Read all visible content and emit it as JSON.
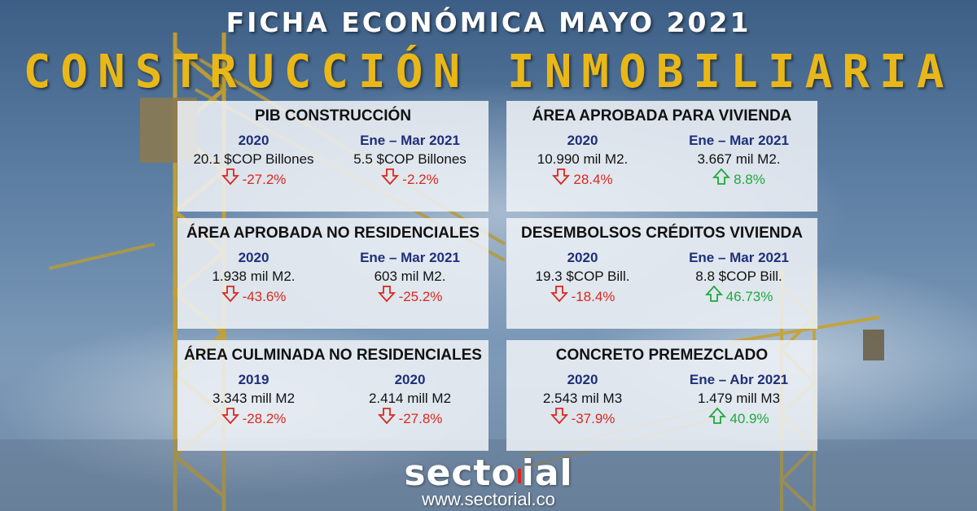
{
  "header": {
    "title": "FICHA ECONÓMICA MAYO 2021",
    "subtitle": "CONSTRUCCIÓN INMOBILIARIA"
  },
  "colors": {
    "title": "#ffffff",
    "subtitle": "#e9b818",
    "period": "#1e2f7a",
    "down": "#d8281e",
    "up": "#1ea93c"
  },
  "cards": [
    {
      "title": "PIB CONSTRUCCIÓN",
      "left": {
        "period": "2020",
        "value": "20.1 $COP Billones",
        "change": "-27.2%",
        "direction": "down"
      },
      "right": {
        "period": "Ene – Mar 2021",
        "value": "5.5 $COP Billones",
        "change": "-2.2%",
        "direction": "down"
      }
    },
    {
      "title": "ÁREA APROBADA PARA VIVIENDA",
      "left": {
        "period": "2020",
        "value": "10.990 mil M2.",
        "change": "28.4%",
        "direction": "down"
      },
      "right": {
        "period": "Ene – Mar 2021",
        "value": "3.667 mil M2.",
        "change": "8.8%",
        "direction": "up"
      }
    },
    {
      "title": "ÁREA APROBADA NO RESIDENCIALES",
      "left": {
        "period": "2020",
        "value": "1.938 mil M2.",
        "change": "-43.6%",
        "direction": "down"
      },
      "right": {
        "period": "Ene – Mar 2021",
        "value": "603 mil M2.",
        "change": "-25.2%",
        "direction": "down"
      }
    },
    {
      "title": "DESEMBOLSOS CRÉDITOS VIVIENDA",
      "left": {
        "period": "2020",
        "value": "19.3 $COP Bill.",
        "change": "-18.4%",
        "direction": "down"
      },
      "right": {
        "period": "Ene – Mar 2021",
        "value": "8.8 $COP Bill.",
        "change": "46.73%",
        "direction": "up"
      }
    },
    {
      "title": "ÁREA CULMINADA NO RESIDENCIALES",
      "left": {
        "period": "2019",
        "value": "3.343 mill M2",
        "change": "-28.2%",
        "direction": "down"
      },
      "right": {
        "period": "2020",
        "value": "2.414 mill M2",
        "change": "-27.8%",
        "direction": "down"
      }
    },
    {
      "title": "CONCRETO PREMEZCLADO",
      "left": {
        "period": "2020",
        "value": "2.543 mil M3",
        "change": "-37.9%",
        "direction": "down"
      },
      "right": {
        "period": "Ene – Abr 2021",
        "value": "1.479 mill M3",
        "change": "40.9%",
        "direction": "up"
      }
    }
  ],
  "footer": {
    "logo_a": "secto",
    "logo_b": "ial",
    "url": "www.sectorial.co"
  }
}
